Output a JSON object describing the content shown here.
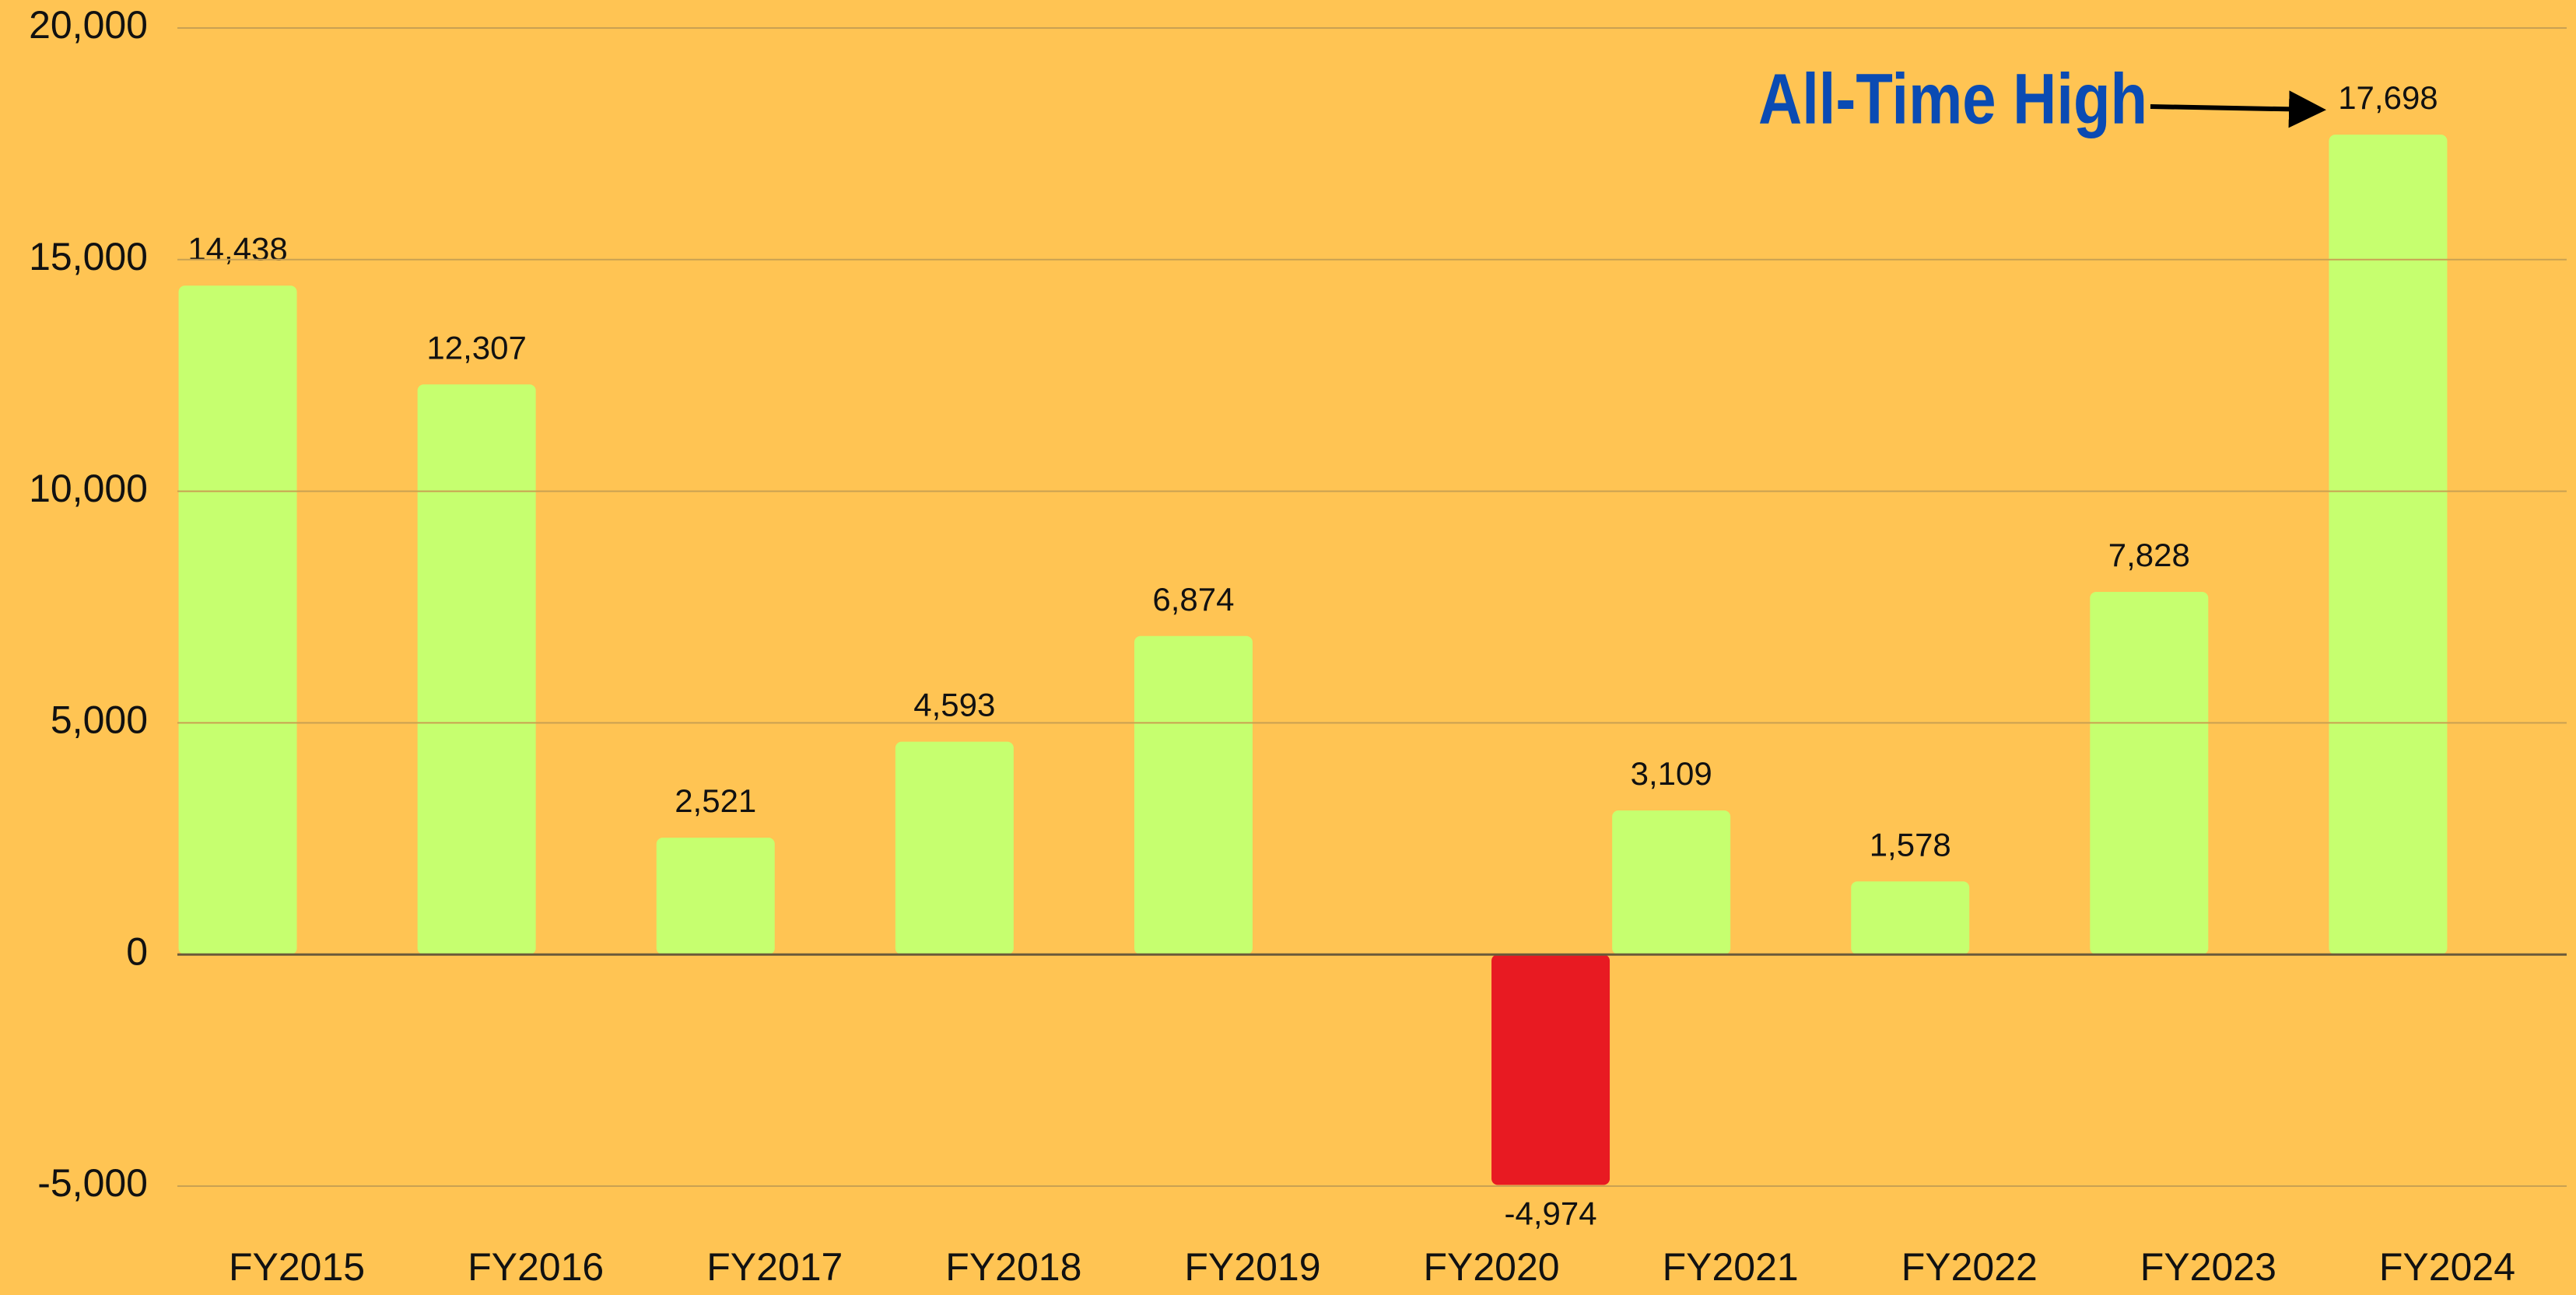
{
  "chart_data": {
    "type": "bar",
    "categories": [
      "FY2015",
      "FY2016",
      "FY2017",
      "FY2018",
      "FY2019",
      "FY2020",
      "FY2021",
      "FY2022",
      "FY2023",
      "FY2024"
    ],
    "series": [
      {
        "color": "#c6ff6f",
        "values": [
          14438,
          12307,
          2521,
          4593,
          6874,
          null,
          3109,
          1578,
          7828,
          17698
        ],
        "value_labels": [
          "14,438",
          "12,307",
          "2,521",
          "4,593",
          "6,874",
          null,
          "3,109",
          "1,578",
          "7,828",
          "17,698"
        ]
      },
      {
        "color": "#e81a22",
        "values": [
          null,
          null,
          null,
          null,
          null,
          -4974,
          null,
          null,
          null,
          null
        ],
        "value_labels": [
          null,
          null,
          null,
          null,
          null,
          "-4,974",
          null,
          null,
          null,
          null
        ]
      }
    ],
    "ylim": [
      -5000,
      20000
    ],
    "yticks": [
      {
        "value": -5000,
        "label": "-5,000"
      },
      0,
      {
        "value": 5000,
        "label": "5,000"
      },
      {
        "value": 10000,
        "label": "10,000"
      },
      {
        "value": 15000,
        "label": "15,000"
      },
      {
        "value": 20000,
        "label": "20,000"
      }
    ],
    "grid": true,
    "annotation": "All-Time High"
  }
}
